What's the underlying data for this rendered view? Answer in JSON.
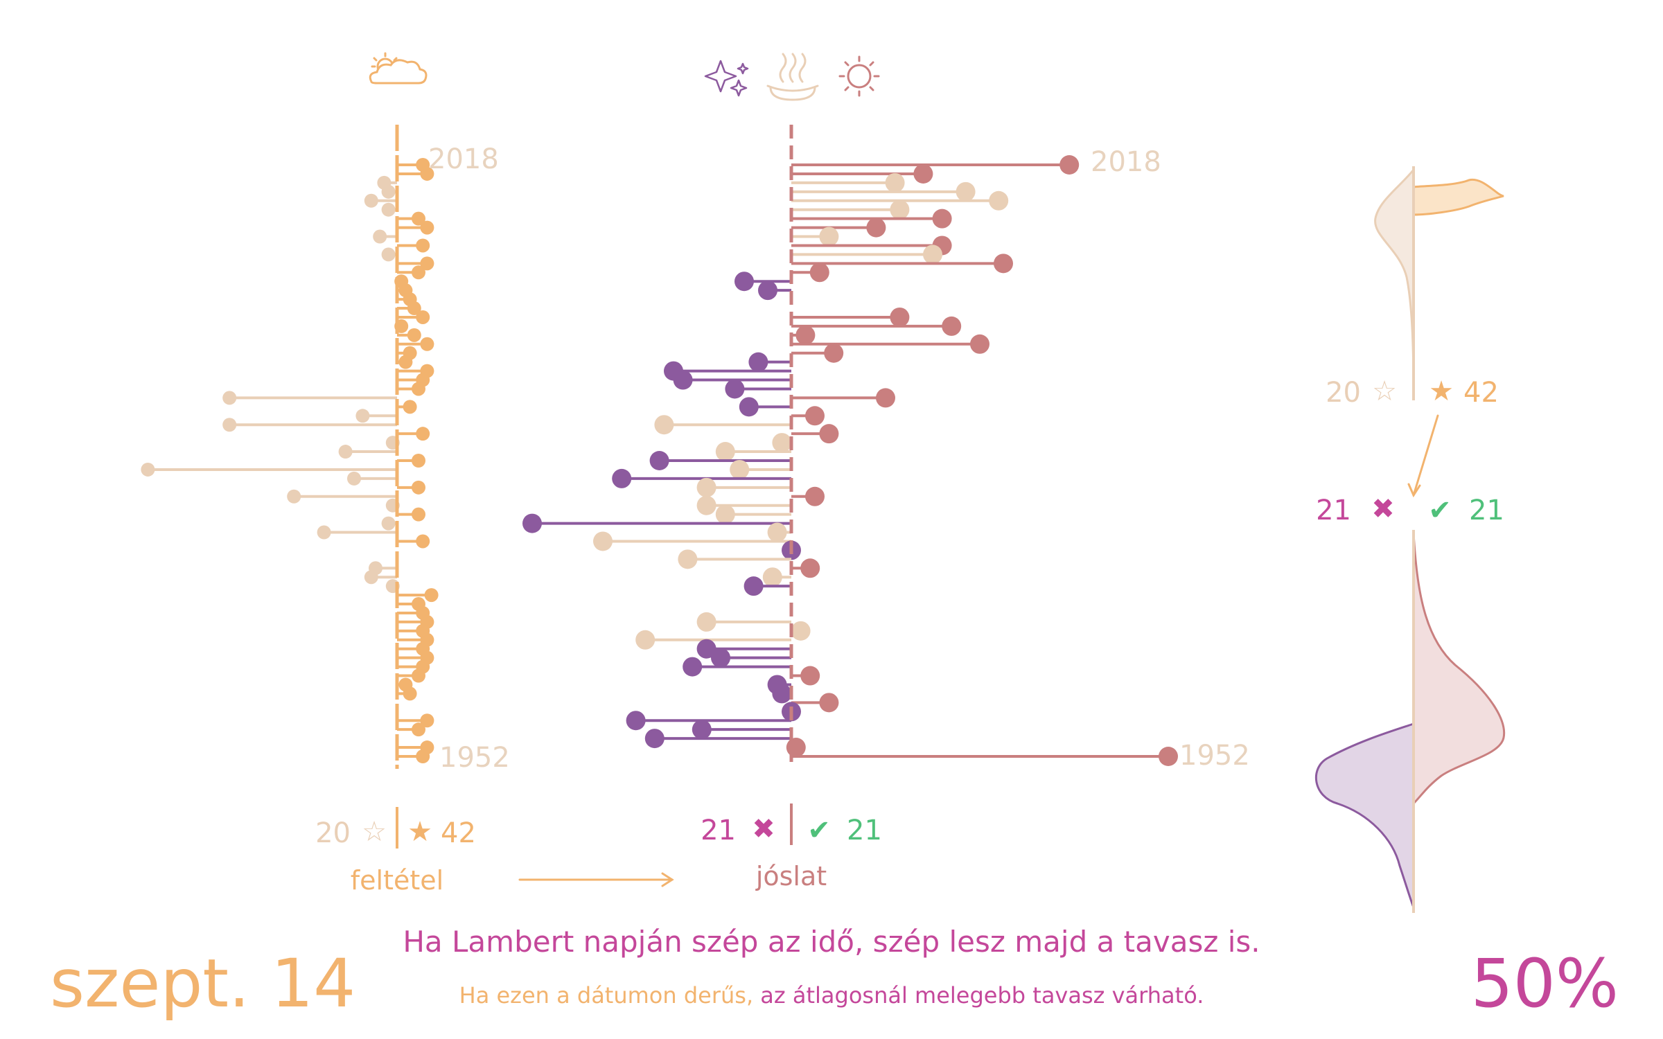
{
  "colors": {
    "orange": "#f2b36e",
    "beige": "#e9cfb6",
    "rose": "#c97f7f",
    "purple": "#8c5a9e",
    "magenta": "#c4479a",
    "green": "#4fc07a"
  },
  "icons": {
    "condition": "sun-behind-cloud-icon",
    "forecast": [
      "sparkles-icon",
      "hot-springs-icon",
      "sun-icon"
    ]
  },
  "condition_panel": {
    "year_top": "2018",
    "year_bottom": "1952",
    "count_hollow": "20",
    "count_filled": "42",
    "caption": "feltétel"
  },
  "forecast_panel": {
    "year_top": "2018",
    "year_bottom": "1952",
    "count_wrong": "21",
    "count_right": "21",
    "caption": "jóslat"
  },
  "side_panel": {
    "count_hollow": "20",
    "count_filled": "42",
    "count_wrong": "21",
    "count_right": "21"
  },
  "footer": {
    "date": "szept. 14",
    "proverb": "Ha Lambert napján szép az idő, szép lesz majd a tavasz is.",
    "explanation_part1": "Ha ezen a dátumon derűs,",
    "explanation_part2": " az átlagosnál melegebb tavasz várható.",
    "accuracy": "50%"
  },
  "chart_data": [
    {
      "type": "scatter",
      "title": "feltétel",
      "x_range": [
        -6,
        2.5
      ],
      "y_range": [
        1952,
        2018
      ],
      "legend": {
        "hollow_star": "20",
        "filled_star": "42"
      },
      "points": [
        {
          "year": 2018,
          "value": 0.6,
          "sunny": true
        },
        {
          "year": 2017,
          "value": 0.7,
          "sunny": true
        },
        {
          "year": 2016,
          "value": -0.3,
          "sunny": false
        },
        {
          "year": 2015,
          "value": -0.2,
          "sunny": false
        },
        {
          "year": 2014,
          "value": -0.6,
          "sunny": false
        },
        {
          "year": 2013,
          "value": -0.2,
          "sunny": false
        },
        {
          "year": 2012,
          "value": 0.5,
          "sunny": true
        },
        {
          "year": 2011,
          "value": 0.7,
          "sunny": true
        },
        {
          "year": 2010,
          "value": -0.4,
          "sunny": false
        },
        {
          "year": 2009,
          "value": 0.6,
          "sunny": true
        },
        {
          "year": 2008,
          "value": -0.2,
          "sunny": false
        },
        {
          "year": 2007,
          "value": 0.7,
          "sunny": true
        },
        {
          "year": 2006,
          "value": 0.5,
          "sunny": true
        },
        {
          "year": 2005,
          "value": 0.1,
          "sunny": true
        },
        {
          "year": 2004,
          "value": 0.2,
          "sunny": true
        },
        {
          "year": 2003,
          "value": 0.3,
          "sunny": true
        },
        {
          "year": 2002,
          "value": 0.4,
          "sunny": true
        },
        {
          "year": 2001,
          "value": 0.6,
          "sunny": true
        },
        {
          "year": 2000,
          "value": 0.1,
          "sunny": true
        },
        {
          "year": 1999,
          "value": 0.4,
          "sunny": true
        },
        {
          "year": 1998,
          "value": 0.7,
          "sunny": true
        },
        {
          "year": 1997,
          "value": 0.3,
          "sunny": true
        },
        {
          "year": 1996,
          "value": 0.2,
          "sunny": true
        },
        {
          "year": 1995,
          "value": 0.7,
          "sunny": true
        },
        {
          "year": 1994,
          "value": 0.6,
          "sunny": true
        },
        {
          "year": 1993,
          "value": 0.5,
          "sunny": true
        },
        {
          "year": 1992,
          "value": -3.9,
          "sunny": false
        },
        {
          "year": 1991,
          "value": 0.3,
          "sunny": true
        },
        {
          "year": 1990,
          "value": -0.8,
          "sunny": false
        },
        {
          "year": 1989,
          "value": -3.9,
          "sunny": false
        },
        {
          "year": 1988,
          "value": 0.6,
          "sunny": true
        },
        {
          "year": 1987,
          "value": -0.1,
          "sunny": false
        },
        {
          "year": 1986,
          "value": -1.2,
          "sunny": false
        },
        {
          "year": 1985,
          "value": 0.5,
          "sunny": true
        },
        {
          "year": 1984,
          "value": -5.8,
          "sunny": false
        },
        {
          "year": 1983,
          "value": -1.0,
          "sunny": false
        },
        {
          "year": 1982,
          "value": 0.5,
          "sunny": true
        },
        {
          "year": 1981,
          "value": -2.4,
          "sunny": false
        },
        {
          "year": 1980,
          "value": -0.1,
          "sunny": false
        },
        {
          "year": 1979,
          "value": 0.5,
          "sunny": true
        },
        {
          "year": 1978,
          "value": -0.2,
          "sunny": false
        },
        {
          "year": 1977,
          "value": -1.7,
          "sunny": false
        },
        {
          "year": 1976,
          "value": 0.6,
          "sunny": true
        },
        {
          "year": 1973,
          "value": -0.5,
          "sunny": false
        },
        {
          "year": 1972,
          "value": -0.6,
          "sunny": false
        },
        {
          "year": 1971,
          "value": -0.1,
          "sunny": false
        },
        {
          "year": 1970,
          "value": 0.8,
          "sunny": true
        },
        {
          "year": 1969,
          "value": 0.5,
          "sunny": true
        },
        {
          "year": 1968,
          "value": 0.6,
          "sunny": true
        },
        {
          "year": 1967,
          "value": 0.7,
          "sunny": true
        },
        {
          "year": 1966,
          "value": 0.6,
          "sunny": true
        },
        {
          "year": 1965,
          "value": 0.7,
          "sunny": true
        },
        {
          "year": 1964,
          "value": 0.6,
          "sunny": true
        },
        {
          "year": 1963,
          "value": 0.7,
          "sunny": true
        },
        {
          "year": 1962,
          "value": 0.6,
          "sunny": true
        },
        {
          "year": 1961,
          "value": 0.5,
          "sunny": true
        },
        {
          "year": 1960,
          "value": 0.2,
          "sunny": true
        },
        {
          "year": 1959,
          "value": 0.3,
          "sunny": true
        },
        {
          "year": 1956,
          "value": 0.7,
          "sunny": true
        },
        {
          "year": 1955,
          "value": 0.5,
          "sunny": true
        },
        {
          "year": 1953,
          "value": 0.7,
          "sunny": true
        },
        {
          "year": 1952,
          "value": 0.6,
          "sunny": true
        }
      ]
    },
    {
      "type": "scatter",
      "title": "jóslat",
      "x_range": [
        -5,
        7.5
      ],
      "y_range": [
        1952,
        2018
      ],
      "legend": {
        "wrong": "21",
        "right": "21"
      },
      "points": [
        {
          "year": 2018,
          "value": 5.9,
          "kind": "right"
        },
        {
          "year": 2017,
          "value": 2.8,
          "kind": "right"
        },
        {
          "year": 2016,
          "value": 2.2,
          "kind": "neutral"
        },
        {
          "year": 2015,
          "value": 3.7,
          "kind": "neutral"
        },
        {
          "year": 2014,
          "value": 4.4,
          "kind": "neutral"
        },
        {
          "year": 2013,
          "value": 2.3,
          "kind": "neutral"
        },
        {
          "year": 2012,
          "value": 3.2,
          "kind": "right"
        },
        {
          "year": 2011,
          "value": 1.8,
          "kind": "right"
        },
        {
          "year": 2010,
          "value": 0.8,
          "kind": "neutral"
        },
        {
          "year": 2009,
          "value": 3.2,
          "kind": "right"
        },
        {
          "year": 2008,
          "value": 3.0,
          "kind": "neutral"
        },
        {
          "year": 2007,
          "value": 4.5,
          "kind": "right"
        },
        {
          "year": 2006,
          "value": 0.6,
          "kind": "right"
        },
        {
          "year": 2005,
          "value": -1.0,
          "kind": "wrong"
        },
        {
          "year": 2004,
          "value": -0.5,
          "kind": "wrong"
        },
        {
          "year": 2001,
          "value": 2.3,
          "kind": "right"
        },
        {
          "year": 2000,
          "value": 3.4,
          "kind": "right"
        },
        {
          "year": 1999,
          "value": 0.3,
          "kind": "right"
        },
        {
          "year": 1998,
          "value": 4.0,
          "kind": "right"
        },
        {
          "year": 1997,
          "value": 0.9,
          "kind": "right"
        },
        {
          "year": 1996,
          "value": -0.7,
          "kind": "wrong"
        },
        {
          "year": 1995,
          "value": -2.5,
          "kind": "wrong"
        },
        {
          "year": 1994,
          "value": -2.3,
          "kind": "wrong"
        },
        {
          "year": 1993,
          "value": -1.2,
          "kind": "wrong"
        },
        {
          "year": 1992,
          "value": 2.0,
          "kind": "right"
        },
        {
          "year": 1991,
          "value": -0.9,
          "kind": "wrong"
        },
        {
          "year": 1990,
          "value": 0.5,
          "kind": "right"
        },
        {
          "year": 1989,
          "value": -2.7,
          "kind": "neutral"
        },
        {
          "year": 1988,
          "value": 0.8,
          "kind": "right"
        },
        {
          "year": 1987,
          "value": -0.2,
          "kind": "neutral"
        },
        {
          "year": 1986,
          "value": -1.4,
          "kind": "neutral"
        },
        {
          "year": 1985,
          "value": -2.8,
          "kind": "wrong"
        },
        {
          "year": 1984,
          "value": -1.1,
          "kind": "neutral"
        },
        {
          "year": 1983,
          "value": -3.6,
          "kind": "wrong"
        },
        {
          "year": 1982,
          "value": -1.8,
          "kind": "neutral"
        },
        {
          "year": 1981,
          "value": 0.5,
          "kind": "right"
        },
        {
          "year": 1980,
          "value": -1.8,
          "kind": "neutral"
        },
        {
          "year": 1979,
          "value": -1.4,
          "kind": "neutral"
        },
        {
          "year": 1978,
          "value": -5.5,
          "kind": "wrong"
        },
        {
          "year": 1977,
          "value": -0.3,
          "kind": "neutral"
        },
        {
          "year": 1976,
          "value": -4.0,
          "kind": "neutral"
        },
        {
          "year": 1975,
          "value": 0.0,
          "kind": "wrong"
        },
        {
          "year": 1974,
          "value": -2.2,
          "kind": "neutral"
        },
        {
          "year": 1973,
          "value": 0.4,
          "kind": "right"
        },
        {
          "year": 1972,
          "value": -0.4,
          "kind": "neutral"
        },
        {
          "year": 1971,
          "value": -0.8,
          "kind": "wrong"
        },
        {
          "year": 1967,
          "value": -1.8,
          "kind": "neutral"
        },
        {
          "year": 1966,
          "value": 0.2,
          "kind": "neutral"
        },
        {
          "year": 1965,
          "value": -3.1,
          "kind": "neutral"
        },
        {
          "year": 1964,
          "value": -1.8,
          "kind": "wrong"
        },
        {
          "year": 1963,
          "value": -1.5,
          "kind": "wrong"
        },
        {
          "year": 1962,
          "value": -2.1,
          "kind": "wrong"
        },
        {
          "year": 1961,
          "value": 0.4,
          "kind": "right"
        },
        {
          "year": 1960,
          "value": -0.3,
          "kind": "wrong"
        },
        {
          "year": 1959,
          "value": -0.2,
          "kind": "wrong"
        },
        {
          "year": 1958,
          "value": 0.8,
          "kind": "right"
        },
        {
          "year": 1957,
          "value": 0.0,
          "kind": "wrong"
        },
        {
          "year": 1956,
          "value": -3.3,
          "kind": "wrong"
        },
        {
          "year": 1955,
          "value": -1.9,
          "kind": "wrong"
        },
        {
          "year": 1954,
          "value": -2.9,
          "kind": "wrong"
        },
        {
          "year": 1953,
          "value": 0.1,
          "kind": "right"
        },
        {
          "year": 1952,
          "value": 8.0,
          "kind": "right"
        }
      ]
    }
  ]
}
